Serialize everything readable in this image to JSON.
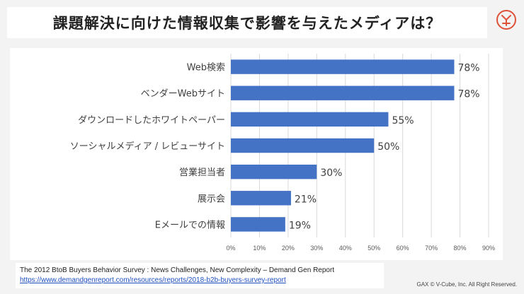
{
  "header": {
    "title": "課題解決に向けた情報収集で影響を与えたメディアは？"
  },
  "logo": {
    "icon": "brand-logo-icon",
    "color": "#e0513a"
  },
  "chart_data": {
    "type": "bar",
    "orientation": "horizontal",
    "categories": [
      "Web検索",
      "ベンダーWebサイト",
      "ダウンロードしたホワイトペーパー",
      "ソーシャルメディア / レビューサイト",
      "営業担当者",
      "展示会",
      "Eメールでの情報"
    ],
    "values": [
      78,
      78,
      55,
      50,
      30,
      21,
      19
    ],
    "value_labels": [
      "78%",
      "78%",
      "55%",
      "50%",
      "30%",
      "21%",
      "19%"
    ],
    "xlim": [
      0,
      90
    ],
    "xticks": [
      0,
      10,
      20,
      30,
      40,
      50,
      60,
      70,
      80,
      90
    ],
    "xtick_labels": [
      "0%",
      "10%",
      "20%",
      "30%",
      "40%",
      "50%",
      "60%",
      "70%",
      "80%",
      "90%"
    ],
    "grid": true,
    "legend": "none",
    "bar_color": "#4472c4"
  },
  "source": {
    "citation": "The 2012 BtoB Buyers Behavior Survey : News Challenges, New Complexity – Demand Gen Report",
    "link": "https://www.demandgenreport.com/resources/reports/2018-b2b-buyers-survey-report"
  },
  "footer": {
    "copyright": "GAX © V-Cube, Inc. All Right Reserved."
  }
}
